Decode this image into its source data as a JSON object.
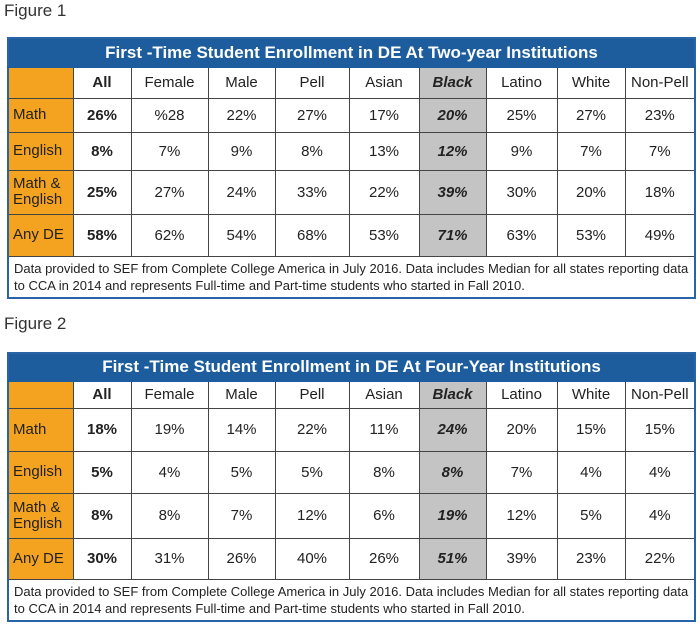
{
  "figures": [
    {
      "label": "Figure 1",
      "title": "First -Time Student Enrollment in DE At Two-year Institutions",
      "columns": [
        "All",
        "Female",
        "Male",
        "Pell",
        "Asian",
        "Black",
        "Latino",
        "White",
        "Non-Pell"
      ],
      "rows": [
        {
          "label": "Math",
          "cells": [
            "26%",
            "%28",
            "22%",
            "27%",
            "17%",
            "20%",
            "25%",
            "27%",
            "23%"
          ]
        },
        {
          "label": "English",
          "cells": [
            "8%",
            "7%",
            "9%",
            "8%",
            "13%",
            "12%",
            "9%",
            "7%",
            "7%"
          ]
        },
        {
          "label": "Math & English",
          "cells": [
            "25%",
            "27%",
            "24%",
            "33%",
            "22%",
            "39%",
            "30%",
            "20%",
            "18%"
          ]
        },
        {
          "label": "Any DE",
          "cells": [
            "58%",
            "62%",
            "54%",
            "68%",
            "53%",
            "71%",
            "63%",
            "53%",
            "49%"
          ]
        }
      ],
      "note": "Data provided to SEF from Complete College America in July 2016. Data includes Median for all states reporting data to CCA in 2014 and represents Full-time and Part-time students who started in Fall 2010."
    },
    {
      "label": "Figure 2",
      "title": "First -Time Student Enrollment in DE At Four-Year Institutions",
      "columns": [
        "All",
        "Female",
        "Male",
        "Pell",
        "Asian",
        "Black",
        "Latino",
        "White",
        "Non-Pell"
      ],
      "rows": [
        {
          "label": "Math",
          "cells": [
            "18%",
            "19%",
            "14%",
            "22%",
            "11%",
            "24%",
            "20%",
            "15%",
            "15%"
          ]
        },
        {
          "label": "English",
          "cells": [
            "5%",
            "4%",
            "5%",
            "5%",
            "8%",
            "8%",
            "7%",
            "4%",
            "4%"
          ]
        },
        {
          "label": "Math & English",
          "cells": [
            "8%",
            "8%",
            "7%",
            "12%",
            "6%",
            "19%",
            "12%",
            "5%",
            "4%"
          ]
        },
        {
          "label": "Any DE",
          "cells": [
            "30%",
            "31%",
            "26%",
            "40%",
            "26%",
            "51%",
            "39%",
            "23%",
            "22%"
          ]
        }
      ],
      "note": "Data provided to SEF from Complete College America in July 2016. Data includes Median for all states reporting data to CCA in 2014 and represents Full-time and Part-time students who started in Fall 2010."
    }
  ]
}
